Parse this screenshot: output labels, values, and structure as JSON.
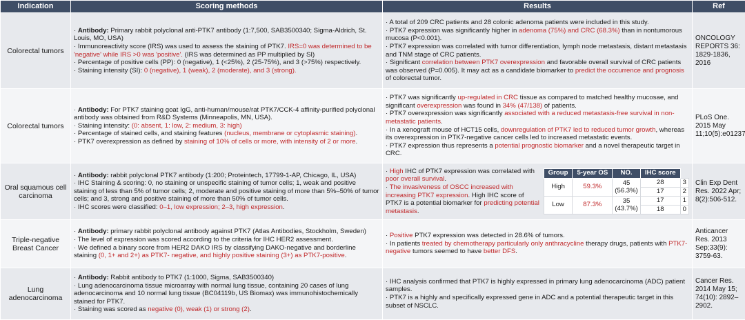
{
  "headers": [
    "Indication",
    "Scoring methods",
    "Results",
    "Ref"
  ],
  "rows": [
    {
      "indication": "Colorectal tumors",
      "scoring": [
        [
          {
            "t": "· "
          },
          {
            "t": "Antibody:",
            "b": true
          },
          {
            "t": " Primary rabbit polyclonal anti-PTK7 antibody (1:7,500, SAB3500340; Sigma-Aldrich, St. Louis, MO, USA)"
          }
        ],
        [
          {
            "t": "· Immunoreactivity score (IRS) was used to assess the staining of PTK7. "
          },
          {
            "t": "IRS=0 was determined to be 'negative' while IRS >0 was 'positive'.",
            "r": true
          },
          {
            "t": " (IRS was determined as PP multiplied by SI)"
          }
        ],
        [
          {
            "t": "· Percentage of positive cells (PP): 0 (negative), 1 (<25%), 2 (25-75%), and 3 (>75%) respectively."
          }
        ],
        [
          {
            "t": "· Staining intensity (SI): "
          },
          {
            "t": "0 (negative), 1 (weak), 2 (moderate), and 3 (strong).",
            "r": true
          }
        ]
      ],
      "results": [
        [
          {
            "t": "· A total of 209 CRC patients and 28 colonic adenoma patients were included in this study."
          }
        ],
        [
          {
            "t": "· PTK7 expression was significantly higher in "
          },
          {
            "t": "adenoma (75%) and CRC (68.3%)",
            "r": true
          },
          {
            "t": " than in nontumorous mucosa (P<0.001)."
          }
        ],
        [
          {
            "t": "· PTK7 expression was correlated with tumor differentiation, lymph node metastasis, distant metastasis and TNM stage of CRC patients."
          }
        ],
        [
          {
            "t": "· Significant "
          },
          {
            "t": "correlation between PTK7 overexpression",
            "r": true
          },
          {
            "t": " and favorable overall survival of CRC patients was observed (P=0.005). It may act as a candidate biomarker to "
          },
          {
            "t": "predict the occurrence and prognosis",
            "r": true
          },
          {
            "t": " of colorectal tumor."
          }
        ]
      ],
      "ref": "ONCOLOGY REPORTS 36: 1829-1836, 2016"
    },
    {
      "indication": "Colorectal tumors",
      "scoring": [
        [
          {
            "t": "· "
          },
          {
            "t": "Antibody:",
            "b": true
          },
          {
            "t": " For PTK7 staining goat IgG, anti-human/mouse/rat PTK7/CCK-4 affinity-purified polyclonal antibody was obtained from R&D Systems (Minneapolis, MN, USA)."
          }
        ],
        [
          {
            "t": "· Staining intensity: "
          },
          {
            "t": "(0: absent, 1: low, 2: medium, 3: high)",
            "r": true
          }
        ],
        [
          {
            "t": "· Percentage of stained cells, and staining features "
          },
          {
            "t": "(nucleus, membrane or cytoplasmic staining)",
            "r": true
          },
          {
            "t": "."
          }
        ],
        [
          {
            "t": "· PTK7 overexpression as defined by "
          },
          {
            "t": "staining of 10% of cells or more, with intensity of 2 or more",
            "r": true
          },
          {
            "t": "."
          }
        ]
      ],
      "results": [
        [
          {
            "t": "· PTK7 was significantly "
          },
          {
            "t": "up-regulated in CRC",
            "r": true
          },
          {
            "t": " tissue as compared to matched healthy mucosae, and significant "
          },
          {
            "t": "overexpression",
            "r": true
          },
          {
            "t": " was found in "
          },
          {
            "t": "34% (47/138)",
            "r": true
          },
          {
            "t": " of patients."
          }
        ],
        [
          {
            "t": "· PTK7 overexpression was significantly "
          },
          {
            "t": "associated with a reduced metastasis-free survival in non-metastatic patients",
            "r": true
          },
          {
            "t": "."
          }
        ],
        [
          {
            "t": "· In a xenograft mouse of HCT15 cells, "
          },
          {
            "t": "downregulation of PTK7 led to reduced tumor growth",
            "r": true
          },
          {
            "t": ", whereas its overexpression in PTK7-negative cancer cells led to increased metastatic events."
          }
        ],
        [
          {
            "t": "· PTK7 expression thus represents a "
          },
          {
            "t": "potential prognostic biomarker",
            "r": true
          },
          {
            "t": " and a novel therapeutic target in CRC."
          }
        ]
      ],
      "ref": "PLoS One. 2015 May 11;10(5):e0123768."
    },
    {
      "indication": "Oral squamous cell carcinoma",
      "scoring": [
        [
          {
            "t": "· "
          },
          {
            "t": "Antibody:",
            "b": true
          },
          {
            "t": " rabbit polyclonal PTK7 antibody (1:200; Proteintech, 17799-1-AP, Chicago, IL, USA)"
          }
        ],
        [
          {
            "t": "· IHC Staining & scoring: 0, no staining or unspecific staining of tumor cells; 1, weak and positive staining of less than 5% of tumor cells; 2, moderate and positive staining of more than 5%–50% of tumor cells; and 3, strong and positive staining of more than 50% of tumor cells."
          }
        ],
        [
          {
            "t": "· IHC scores were classified: "
          },
          {
            "t": "0–1, low expression; 2–3, high expression",
            "r": true
          },
          {
            "t": "."
          }
        ]
      ],
      "results": [
        [
          {
            "t": "· "
          },
          {
            "t": "High",
            "r": true
          },
          {
            "t": " IHC of PTK7 expression was correlated with "
          },
          {
            "t": "poor overall survival",
            "r": true
          },
          {
            "t": "."
          }
        ],
        [
          {
            "t": "· "
          },
          {
            "t": "The invasiveness of OSCC increased with increasing PTK7 expression",
            "r": true
          },
          {
            "t": ". High IHC score of PTK7 is a potential biomarker for "
          },
          {
            "t": "predicting potential metastasis",
            "r": true
          },
          {
            "t": "."
          }
        ]
      ],
      "ihc_table": {
        "headers": [
          "Group",
          "5-year OS",
          "NO.",
          "IHC score"
        ],
        "groups": [
          {
            "group": "High",
            "os": "59.3%",
            "no_total": "45",
            "no_pct": "(56.3%)",
            "sub": [
              {
                "no": "28",
                "score": "3"
              },
              {
                "no": "17",
                "score": "2"
              }
            ]
          },
          {
            "group": "Low",
            "os": "87.3%",
            "no_total": "35",
            "no_pct": "(43.7%)",
            "sub": [
              {
                "no": "17",
                "score": "1"
              },
              {
                "no": "18",
                "score": "0"
              }
            ]
          }
        ]
      },
      "ref": "Clin Exp Dent Res. 2022 Apr; 8(2):506-512."
    },
    {
      "indication": "Triple-negative Breast Cancer",
      "scoring": [
        [
          {
            "t": "· "
          },
          {
            "t": "Antibody:",
            "b": true
          },
          {
            "t": " primary rabbit polyclonal antibody against PTK7 (Atlas Antibodies, Stockholm, Sweden)"
          }
        ],
        [
          {
            "t": "· The level of expression was scored according to the criteria for IHC HER2 assessment."
          }
        ],
        [
          {
            "t": "· We defined a binary score from HER2 DAKO IRS by classifying DAKO-negative and borderline staining "
          },
          {
            "t": "(0, 1+ and 2+) as PTK7- negative, and highly positive staining (3+) as PTK7-positive",
            "r": true
          },
          {
            "t": "."
          }
        ]
      ],
      "results": [
        [
          {
            "t": "· "
          },
          {
            "t": "Positive",
            "r": true
          },
          {
            "t": " PTK7 expression was detected in 28.6% of tumors."
          }
        ],
        [
          {
            "t": "· In patients "
          },
          {
            "t": "treated by chemotherapy particularly only anthracycline",
            "r": true
          },
          {
            "t": " therapy drugs, patients with "
          },
          {
            "t": "PTK7-negative",
            "r": true
          },
          {
            "t": " tumors seemed to have "
          },
          {
            "t": "better DFS",
            "r": true
          },
          {
            "t": "."
          }
        ]
      ],
      "ref": "Anticancer Res. 2013 Sep;33(9): 3759-63."
    },
    {
      "indication": "Lung adenocarcinoma",
      "scoring": [
        [
          {
            "t": "· "
          },
          {
            "t": "Antibody:",
            "b": true
          },
          {
            "t": " Rabbit antibody to PTK7 (1:1000, Sigma, SAB3500340)"
          }
        ],
        [
          {
            "t": "· Lung adenocarcinoma tissue microarray with normal lung tissue, containing 20 cases of lung adenocarcinoma and 10 normal lung tissue (BC04119b, US Biomax) was immunohistochemically stained for PTK7."
          }
        ],
        [
          {
            "t": "· Staining was scored as "
          },
          {
            "t": "negative (0), weak (1) or strong (2)",
            "r": true
          },
          {
            "t": "."
          }
        ]
      ],
      "results": [
        [
          {
            "t": "· IHC analysis confirmed that PTK7 is highly expressed in primary lung adenocarcinoma (ADC) patient samples."
          }
        ],
        [
          {
            "t": "· PTK7 is a highly and specifically expressed gene in ADC and a potential therapeutic target in this subset of NSCLC."
          }
        ]
      ],
      "ref": "Cancer Res. 2014 May 15; 74(10): 2892–2902."
    }
  ]
}
